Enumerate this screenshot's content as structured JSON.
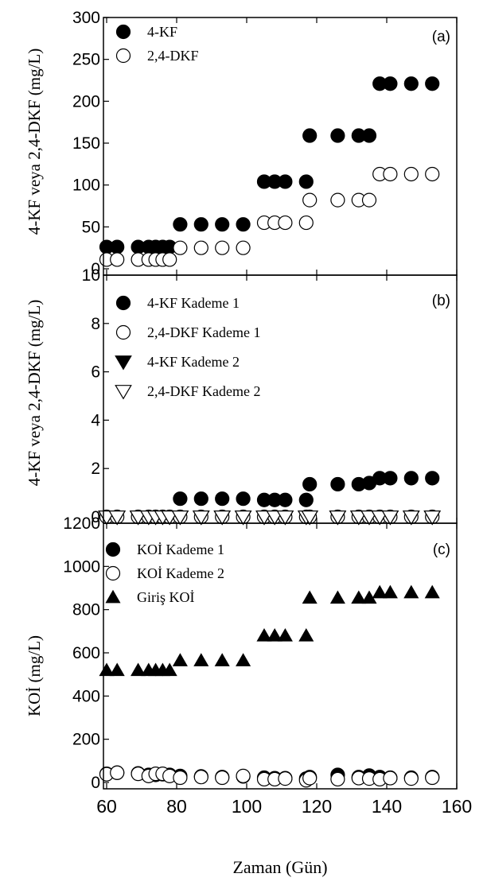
{
  "chart_data": [
    {
      "type": "scatter",
      "panel_label": "(a)",
      "ylabel": "4-KF veya 2,4-DKF (mg/L)",
      "xlabel": "",
      "xlim": [
        60,
        160
      ],
      "ylim": [
        0,
        300
      ],
      "yticks": [
        "0",
        "50",
        "100",
        "150",
        "200",
        "250",
        "300"
      ],
      "legend_position": "top-left",
      "series": [
        {
          "name": "4-KF",
          "marker": "circle-filled",
          "points": [
            [
              60,
              26
            ],
            [
              63,
              26
            ],
            [
              69,
              26
            ],
            [
              72,
              26
            ],
            [
              74,
              26
            ],
            [
              76,
              26
            ],
            [
              78,
              26
            ],
            [
              81,
              53
            ],
            [
              87,
              53
            ],
            [
              93,
              53
            ],
            [
              99,
              53
            ],
            [
              105,
              104
            ],
            [
              108,
              104
            ],
            [
              111,
              104
            ],
            [
              117,
              104
            ],
            [
              118,
              159
            ],
            [
              126,
              159
            ],
            [
              132,
              159
            ],
            [
              135,
              159
            ],
            [
              138,
              221
            ],
            [
              141,
              221
            ],
            [
              147,
              221
            ],
            [
              153,
              221
            ]
          ]
        },
        {
          "name": "2,4-DKF",
          "marker": "circle-open",
          "points": [
            [
              60,
              11
            ],
            [
              63,
              11
            ],
            [
              69,
              11
            ],
            [
              72,
              11
            ],
            [
              74,
              11
            ],
            [
              76,
              11
            ],
            [
              78,
              11
            ],
            [
              81,
              25
            ],
            [
              87,
              25
            ],
            [
              93,
              25
            ],
            [
              99,
              25
            ],
            [
              105,
              55
            ],
            [
              108,
              55
            ],
            [
              111,
              55
            ],
            [
              117,
              55
            ],
            [
              118,
              82
            ],
            [
              126,
              82
            ],
            [
              132,
              82
            ],
            [
              135,
              82
            ],
            [
              138,
              113
            ],
            [
              141,
              113
            ],
            [
              147,
              113
            ],
            [
              153,
              113
            ]
          ]
        }
      ]
    },
    {
      "type": "scatter",
      "panel_label": "(b)",
      "ylabel": "4-KF veya 2,4-DKF (mg/L)",
      "xlabel": "",
      "xlim": [
        60,
        160
      ],
      "ylim": [
        0,
        10
      ],
      "yticks": [
        "0",
        "2",
        "4",
        "6",
        "8",
        "10"
      ],
      "legend_position": "top-left",
      "series": [
        {
          "name": "4-KF Kademe 1",
          "marker": "circle-filled",
          "points": [
            [
              81,
              0.75
            ],
            [
              87,
              0.75
            ],
            [
              93,
              0.75
            ],
            [
              99,
              0.75
            ],
            [
              105,
              0.7
            ],
            [
              108,
              0.7
            ],
            [
              111,
              0.7
            ],
            [
              117,
              0.7
            ],
            [
              118,
              1.35
            ],
            [
              126,
              1.35
            ],
            [
              132,
              1.35
            ],
            [
              135,
              1.4
            ],
            [
              138,
              1.6
            ],
            [
              141,
              1.6
            ],
            [
              147,
              1.6
            ],
            [
              153,
              1.6
            ]
          ]
        },
        {
          "name": "2,4-DKF Kademe 1",
          "marker": "circle-open",
          "points": [
            [
              60,
              0
            ],
            [
              63,
              0
            ],
            [
              69,
              0
            ],
            [
              72,
              0
            ],
            [
              74,
              0
            ],
            [
              76,
              0
            ],
            [
              78,
              0
            ],
            [
              81,
              0
            ],
            [
              87,
              0
            ],
            [
              93,
              0
            ],
            [
              99,
              0
            ],
            [
              105,
              0
            ],
            [
              108,
              0
            ],
            [
              111,
              0
            ],
            [
              117,
              0
            ],
            [
              118,
              0
            ],
            [
              126,
              0
            ],
            [
              132,
              0
            ],
            [
              135,
              0
            ],
            [
              138,
              0
            ],
            [
              141,
              0
            ],
            [
              147,
              0
            ],
            [
              153,
              0
            ]
          ]
        },
        {
          "name": "4-KF Kademe 2",
          "marker": "triangle-down-filled",
          "points": [
            [
              60,
              0
            ],
            [
              63,
              0
            ],
            [
              69,
              0
            ],
            [
              72,
              0
            ],
            [
              74,
              0
            ],
            [
              76,
              0
            ],
            [
              78,
              0
            ],
            [
              81,
              0
            ],
            [
              87,
              0
            ],
            [
              93,
              0
            ],
            [
              99,
              0
            ],
            [
              105,
              0
            ],
            [
              108,
              0
            ],
            [
              111,
              0
            ],
            [
              117,
              0
            ],
            [
              118,
              0
            ],
            [
              126,
              0
            ],
            [
              132,
              0
            ],
            [
              135,
              0
            ],
            [
              138,
              0
            ],
            [
              141,
              0
            ],
            [
              147,
              0
            ],
            [
              153,
              0
            ]
          ]
        },
        {
          "name": "2,4-DKF Kademe 2",
          "marker": "triangle-down-open",
          "points": [
            [
              60,
              0
            ],
            [
              63,
              0
            ],
            [
              69,
              0
            ],
            [
              72,
              0
            ],
            [
              74,
              0
            ],
            [
              76,
              0
            ],
            [
              78,
              0
            ],
            [
              81,
              0
            ],
            [
              87,
              0
            ],
            [
              93,
              0
            ],
            [
              99,
              0
            ],
            [
              105,
              0
            ],
            [
              108,
              0
            ],
            [
              111,
              0
            ],
            [
              117,
              0
            ],
            [
              118,
              0
            ],
            [
              126,
              0
            ],
            [
              132,
              0
            ],
            [
              135,
              0
            ],
            [
              138,
              0
            ],
            [
              141,
              0
            ],
            [
              147,
              0
            ],
            [
              153,
              0
            ]
          ]
        }
      ]
    },
    {
      "type": "scatter",
      "panel_label": "(c)",
      "ylabel": "KOİ (mg/L)",
      "xlabel": "Zaman (Gün)",
      "xlim": [
        60,
        160
      ],
      "ylim": [
        0,
        1200
      ],
      "xticks": [
        "60",
        "80",
        "100",
        "120",
        "140",
        "160"
      ],
      "yticks": [
        "0",
        "200",
        "400",
        "600",
        "800",
        "1000",
        "1200"
      ],
      "legend_position": "top-left",
      "series": [
        {
          "name": "KOİ Kademe 1",
          "marker": "circle-filled",
          "points": [
            [
              60,
              40
            ],
            [
              63,
              45
            ],
            [
              69,
              42
            ],
            [
              72,
              35
            ],
            [
              74,
              35
            ],
            [
              76,
              38
            ],
            [
              78,
              35
            ],
            [
              81,
              30
            ],
            [
              87,
              28
            ],
            [
              93,
              25
            ],
            [
              99,
              28
            ],
            [
              105,
              22
            ],
            [
              108,
              20
            ],
            [
              111,
              20
            ],
            [
              117,
              18
            ],
            [
              118,
              25
            ],
            [
              126,
              35
            ],
            [
              132,
              25
            ],
            [
              135,
              32
            ],
            [
              138,
              25
            ],
            [
              141,
              22
            ],
            [
              147,
              22
            ],
            [
              153,
              25
            ]
          ]
        },
        {
          "name": "KOİ Kademe 2",
          "marker": "circle-open",
          "points": [
            [
              60,
              38
            ],
            [
              63,
              45
            ],
            [
              69,
              40
            ],
            [
              72,
              30
            ],
            [
              74,
              40
            ],
            [
              76,
              40
            ],
            [
              78,
              30
            ],
            [
              81,
              22
            ],
            [
              87,
              25
            ],
            [
              93,
              22
            ],
            [
              99,
              30
            ],
            [
              105,
              15
            ],
            [
              108,
              15
            ],
            [
              111,
              18
            ],
            [
              117,
              10
            ],
            [
              118,
              20
            ],
            [
              126,
              15
            ],
            [
              132,
              20
            ],
            [
              135,
              18
            ],
            [
              138,
              15
            ],
            [
              141,
              20
            ],
            [
              147,
              18
            ],
            [
              153,
              22
            ]
          ]
        },
        {
          "name": "Giriş KOİ",
          "marker": "triangle-up-filled",
          "points": [
            [
              60,
              520
            ],
            [
              63,
              520
            ],
            [
              69,
              520
            ],
            [
              72,
              520
            ],
            [
              74,
              520
            ],
            [
              76,
              520
            ],
            [
              78,
              520
            ],
            [
              81,
              565
            ],
            [
              87,
              565
            ],
            [
              93,
              565
            ],
            [
              99,
              565
            ],
            [
              105,
              680
            ],
            [
              108,
              680
            ],
            [
              111,
              680
            ],
            [
              117,
              680
            ],
            [
              118,
              855
            ],
            [
              126,
              855
            ],
            [
              132,
              855
            ],
            [
              135,
              855
            ],
            [
              138,
              880
            ],
            [
              141,
              880
            ],
            [
              147,
              880
            ],
            [
              153,
              880
            ]
          ]
        }
      ]
    }
  ]
}
